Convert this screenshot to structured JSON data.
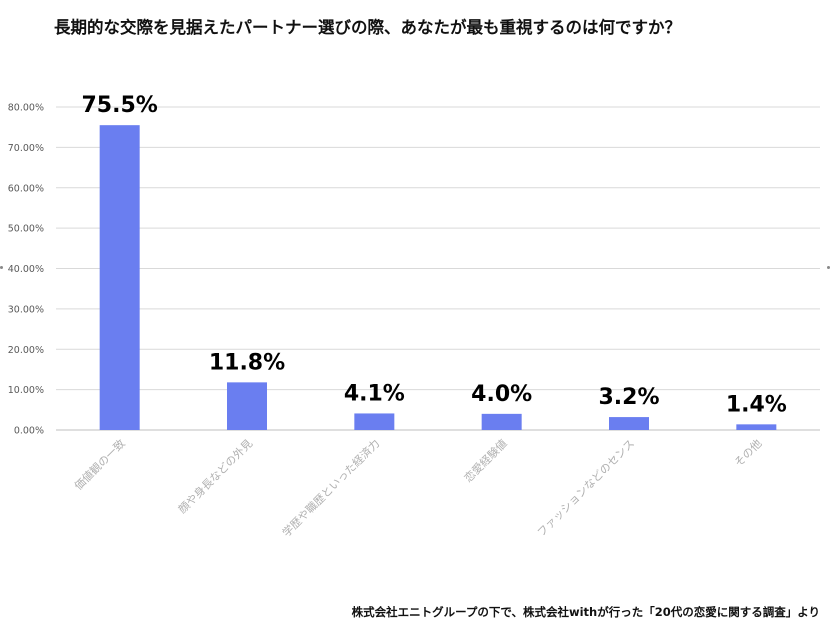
{
  "title": "長期的な交際を見据えたパートナー選びの際、あなたが最も重視するのは何ですか？",
  "source": "株式会社エニトグループの下で、株式会社withが行った「20代の恋愛に関する調査」より",
  "colors": {
    "bar": "#6a7ef0",
    "grid": "#d9d9d9"
  },
  "chart_data": {
    "type": "bar",
    "title": "長期的な交際を見据えたパートナー選びの際、あなたが最も重視するのは何ですか？",
    "xlabel": "",
    "ylabel": "",
    "ylim": [
      0,
      80
    ],
    "yticks": [
      "0.00%",
      "10.00%",
      "20.00%",
      "30.00%",
      "40.00%",
      "50.00%",
      "60.00%",
      "70.00%",
      "80.00%"
    ],
    "grid": true,
    "legend": "none",
    "categories": [
      "価値観の一致",
      "顔や身長などの外見",
      "学歴や職歴といった経済力",
      "恋愛経験値",
      "ファッションなどのセンス",
      "その他"
    ],
    "values": [
      75.5,
      11.8,
      4.1,
      4.0,
      3.2,
      1.4
    ],
    "data_labels": [
      "75.5%",
      "11.8%",
      "4.1%",
      "4.0%",
      "3.2%",
      "1.4%"
    ]
  }
}
